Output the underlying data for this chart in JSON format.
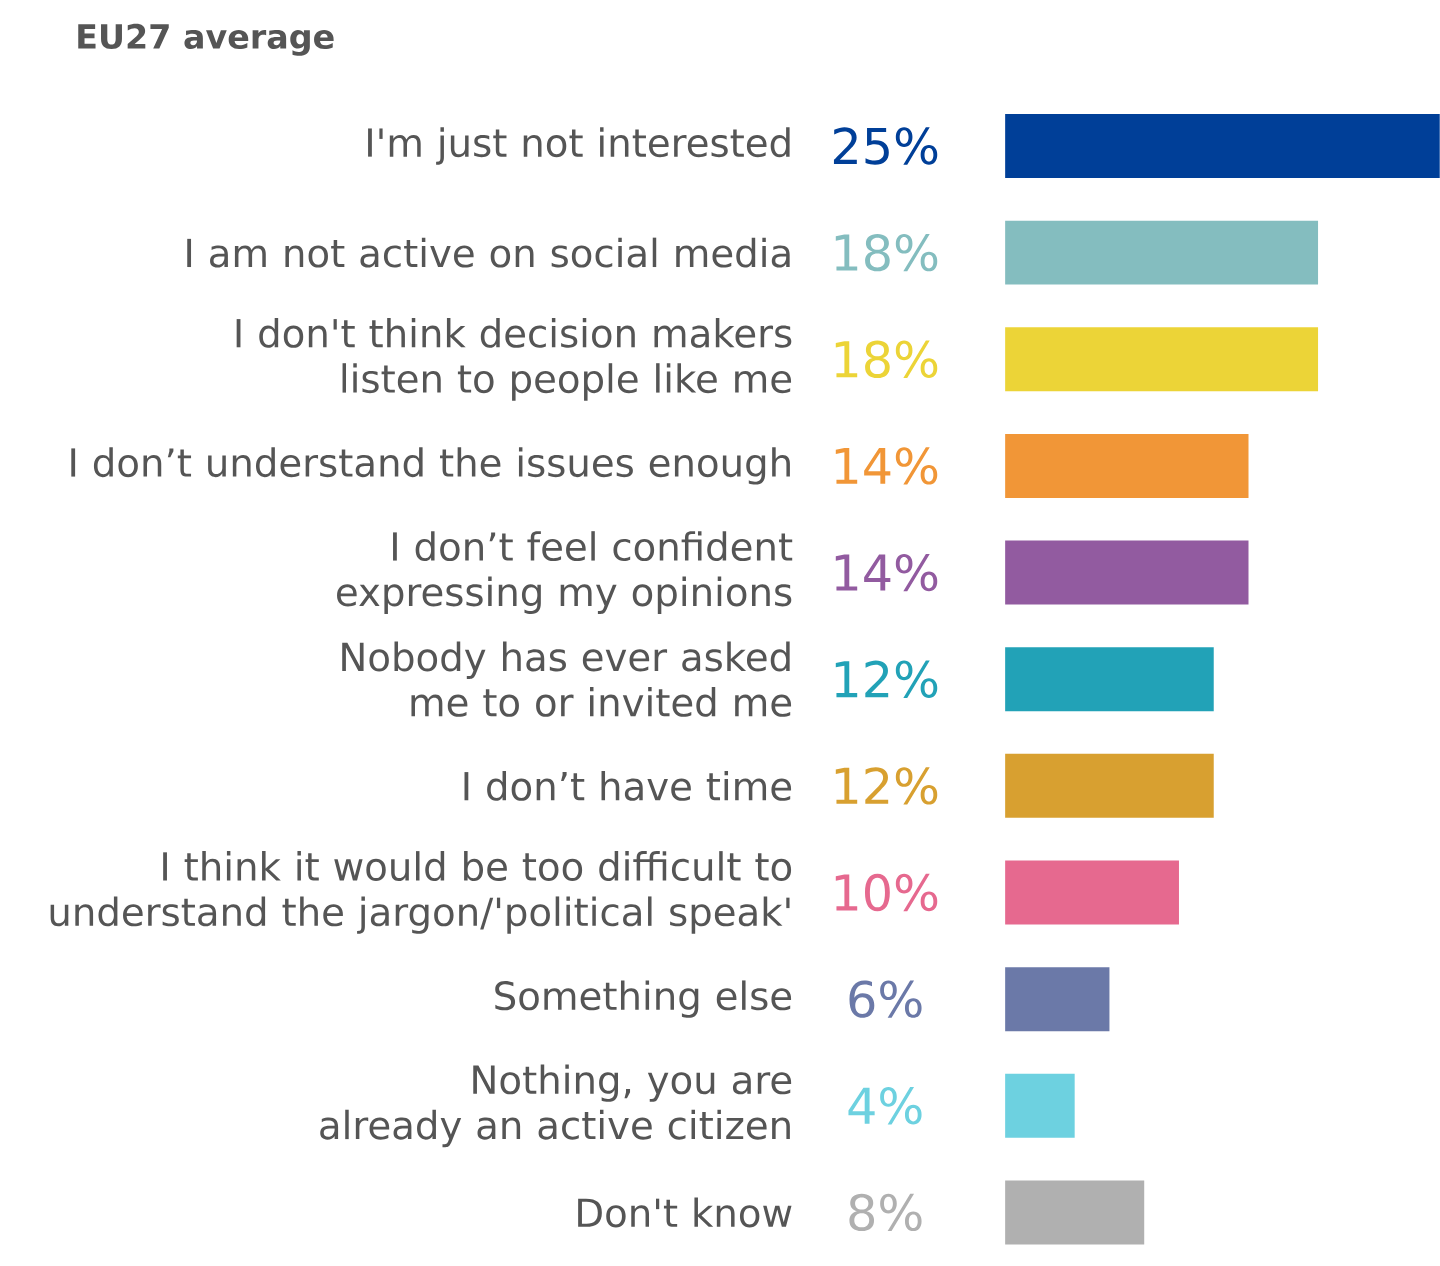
{
  "chart_data": {
    "type": "bar",
    "orientation": "horizontal",
    "title": "EU27 average",
    "categories": [
      "I'm just not interested",
      "I am not active on social media",
      "I don't think decision makers listen to people like me",
      "I don’t understand the issues enough",
      "I don’t feel confident expressing my opinions",
      "Nobody has ever asked me to or invited me",
      "I don’t have time",
      "I think it would be too difficult to understand the jargon/'political speak'",
      "Something else",
      "Nothing, you are already an active citizen",
      "Don't know"
    ],
    "values": [
      25,
      18,
      18,
      14,
      14,
      12,
      12,
      10,
      6,
      4,
      8
    ],
    "value_labels": [
      "25%",
      "18%",
      "18%",
      "14%",
      "14%",
      "12%",
      "12%",
      "10%",
      "6%",
      "4%",
      "8%"
    ],
    "colors": [
      "#003f98",
      "#84bdbf",
      "#ecd437",
      "#f19637",
      "#925ba0",
      "#22a2b7",
      "#d8a030",
      "#e6698f",
      "#6b79a8",
      "#6dd1e0",
      "#b0b0b0"
    ]
  }
}
